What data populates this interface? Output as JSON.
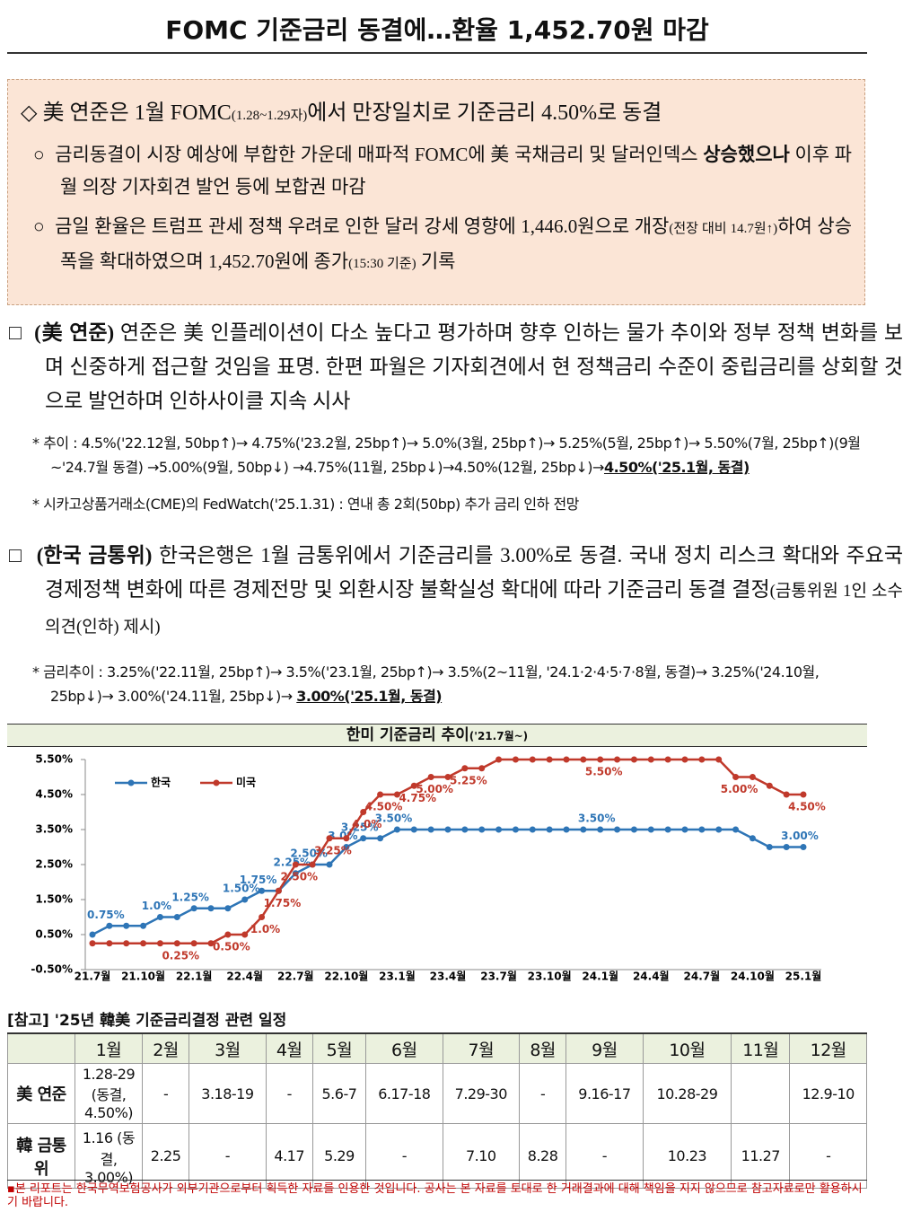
{
  "header": {
    "title": "FOMC 기준금리 동결에…환율 1,452.70원 마감"
  },
  "summary": {
    "headline": [
      "美 연준은 1월 FOMC",
      "(1.28~1.29자)",
      "에서 만장일치로 기준금리 4.50%로 동결"
    ],
    "items": [
      [
        "금리동결이 시장 예상에 부합한 가운데 매파적 FOMC에 美 국채금리 및 달러인덱스 ",
        "상승했으나",
        " 이후 파월 의장 기자회견 발언 등에 보합권 마감"
      ],
      [
        "금일 환율은 트럼프 관세 정책 우려로 인한 달러 강세 영향에 1,446.0원으로 개장",
        "(전장 대비 14.7원↑)",
        "하여 상승폭을 확대하였으며 1,452.70원에 종가",
        "(15:30 기준)",
        " 기록"
      ]
    ]
  },
  "sections": [
    {
      "label": "(美 연준)",
      "text": "연준은 美 인플레이션이 다소 높다고 평가하며 향후 인하는 물가 추이와 정부 정책 변화를 보며 신중하게 접근할 것임을 표명. 한편 파월은 기자회견에서 현 정책금리 수준이 중립금리를 상회할 것으로 발언하며 인하사이클 지속 시사",
      "notes": [
        [
          "추이 : 4.5%('22.12월, 50bp↑)→ 4.75%('23.2월, 25bp↑)→ 5.0%(3월, 25bp↑)→ 5.25%(5월, 25bp↑)→ 5.50%(7월, 25bp↑)(9월~'24.7월 동결) →5.00%(9월, 50bp↓) →4.75%(11월, 25bp↓)→4.50%(12월, 25bp↓)→",
          "4.50%('25.1월, 동결)"
        ],
        [
          "시카고상품거래소(CME)의 FedWatch('25.1.31) : 연내 총 2회(50bp) 추가 금리 인하 전망"
        ]
      ]
    },
    {
      "label": "(한국 금통위)",
      "text": "한국은행은 1월 금통위에서 기준금리를 3.00%로 동결. 국내 정치 리스크 확대와 주요국 경제정책 변화에 따른 경제전망 및 외환시장 불확실성 확대에 따라 기준금리 동결 결정",
      "extra": "(금통위원 1인 소수의견(인하) 제시)",
      "notes": [
        [
          "금리추이 : 3.25%('22.11월, 25bp↑)→ 3.5%('23.1월, 25bp↑)→ 3.5%(2~11월, '24.1·2·4·5·7·8월, 동결)→ 3.25%('24.10월, 25bp↓)→ 3.00%('24.11월, 25bp↓)→ ",
          "3.00%('25.1월, 동결)"
        ]
      ]
    }
  ],
  "chart_data": {
    "type": "line",
    "title": "한미 기준금리 추이",
    "subtitle": "('21.7월~)",
    "categories": [
      "21.7월",
      null,
      null,
      "21.10월",
      null,
      null,
      "22.1월",
      null,
      null,
      "22.4월",
      null,
      null,
      "22.7월",
      null,
      null,
      "22.10월",
      null,
      null,
      "23.1월",
      null,
      null,
      "23.4월",
      null,
      null,
      "23.7월",
      null,
      null,
      "23.10월",
      null,
      null,
      "24.1월",
      null,
      null,
      "24.4월",
      null,
      null,
      "24.7월",
      null,
      null,
      "24.10월",
      null,
      null,
      "25.1월"
    ],
    "series": [
      {
        "name": "한국",
        "color": "#2e75b6",
        "values": [
          0.5,
          0.75,
          0.75,
          0.75,
          1.0,
          1.0,
          1.25,
          1.25,
          1.25,
          1.5,
          1.75,
          1.75,
          2.25,
          2.5,
          2.5,
          3.0,
          3.25,
          3.25,
          3.5,
          3.5,
          3.5,
          3.5,
          3.5,
          3.5,
          3.5,
          3.5,
          3.5,
          3.5,
          3.5,
          3.5,
          3.5,
          3.5,
          3.5,
          3.5,
          3.5,
          3.5,
          3.5,
          3.5,
          3.5,
          3.25,
          3.0,
          3.0,
          3.0
        ],
        "value_labels": [
          null,
          "0.75%",
          null,
          null,
          "1.0%",
          null,
          "1.25%",
          null,
          null,
          "1.50%",
          "1.75%",
          null,
          "2.25%",
          "2.50%",
          null,
          "3.0%",
          "3.25%",
          null,
          "3.50%",
          null,
          null,
          null,
          null,
          null,
          null,
          null,
          null,
          null,
          null,
          null,
          "3.50%",
          null,
          null,
          null,
          null,
          null,
          null,
          null,
          null,
          null,
          null,
          null,
          "3.00%"
        ]
      },
      {
        "name": "미국",
        "color": "#c0392b",
        "values": [
          0.25,
          0.25,
          0.25,
          0.25,
          0.25,
          0.25,
          0.25,
          0.25,
          0.5,
          0.5,
          1.0,
          1.75,
          2.5,
          2.5,
          3.25,
          3.25,
          4.0,
          4.5,
          4.5,
          4.75,
          5.0,
          5.0,
          5.25,
          5.25,
          5.5,
          5.5,
          5.5,
          5.5,
          5.5,
          5.5,
          5.5,
          5.5,
          5.5,
          5.5,
          5.5,
          5.5,
          5.5,
          5.5,
          5.0,
          5.0,
          4.75,
          4.5,
          4.5
        ],
        "value_labels": [
          null,
          null,
          null,
          null,
          null,
          "0.25%",
          null,
          null,
          "0.50%",
          null,
          "1.0%",
          "1.75%",
          "2.50%",
          null,
          "3.25%",
          null,
          "4.0%",
          "4.50%",
          null,
          "4.75%",
          "5.00%",
          null,
          "5.25%",
          null,
          null,
          null,
          null,
          null,
          null,
          null,
          "5.50%",
          null,
          null,
          null,
          null,
          null,
          null,
          null,
          "5.00%",
          null,
          null,
          null,
          "4.50%"
        ]
      }
    ],
    "ylim": [
      -0.5,
      5.5
    ],
    "yticks": [
      {
        "value": -0.5,
        "label": "-0.50%"
      },
      {
        "value": 0.5,
        "label": "0.50%"
      },
      {
        "value": 1.5,
        "label": "1.50%"
      },
      {
        "value": 2.5,
        "label": "2.50%"
      },
      {
        "value": 3.5,
        "label": "3.50%"
      },
      {
        "value": 4.5,
        "label": "4.50%"
      },
      {
        "value": 5.5,
        "label": "5.50%"
      }
    ],
    "grid": false,
    "legend": "upper left"
  },
  "table": {
    "title": "[참고] '25년 韓美 기준금리결정 관련 일정",
    "header": [
      "1월",
      "2월",
      "3월",
      "4월",
      "5월",
      "6월",
      "7월",
      "8월",
      "9월",
      "10월",
      "11월",
      "12월"
    ],
    "rows": [
      {
        "label": "美 연준",
        "cells": [
          "1.28-29 (동결, 4.50%)",
          "-",
          "3.18-19",
          "-",
          "5.6-7",
          "6.17-18",
          "7.29-30",
          "-",
          "9.16-17",
          "10.28-29",
          null,
          "12.9-10"
        ]
      },
      {
        "label": "韓 금통위",
        "cells": [
          "1.16 (동결, 3.00%)",
          "2.25",
          "-",
          "4.17",
          "5.29",
          "-",
          "7.10",
          "8.28",
          "-",
          "10.23",
          "11.27",
          "-"
        ]
      }
    ]
  },
  "footer": {
    "text": "본 리포트는 한국무역보험공사가 외부기관으로부터 획득한 자료를 인용한 것입니다. 공사는 본 자료를 토대로 한 거래결과에 대해 책임을 지지 않으므로 참고자료로만 활용하시기 바랍니다."
  }
}
